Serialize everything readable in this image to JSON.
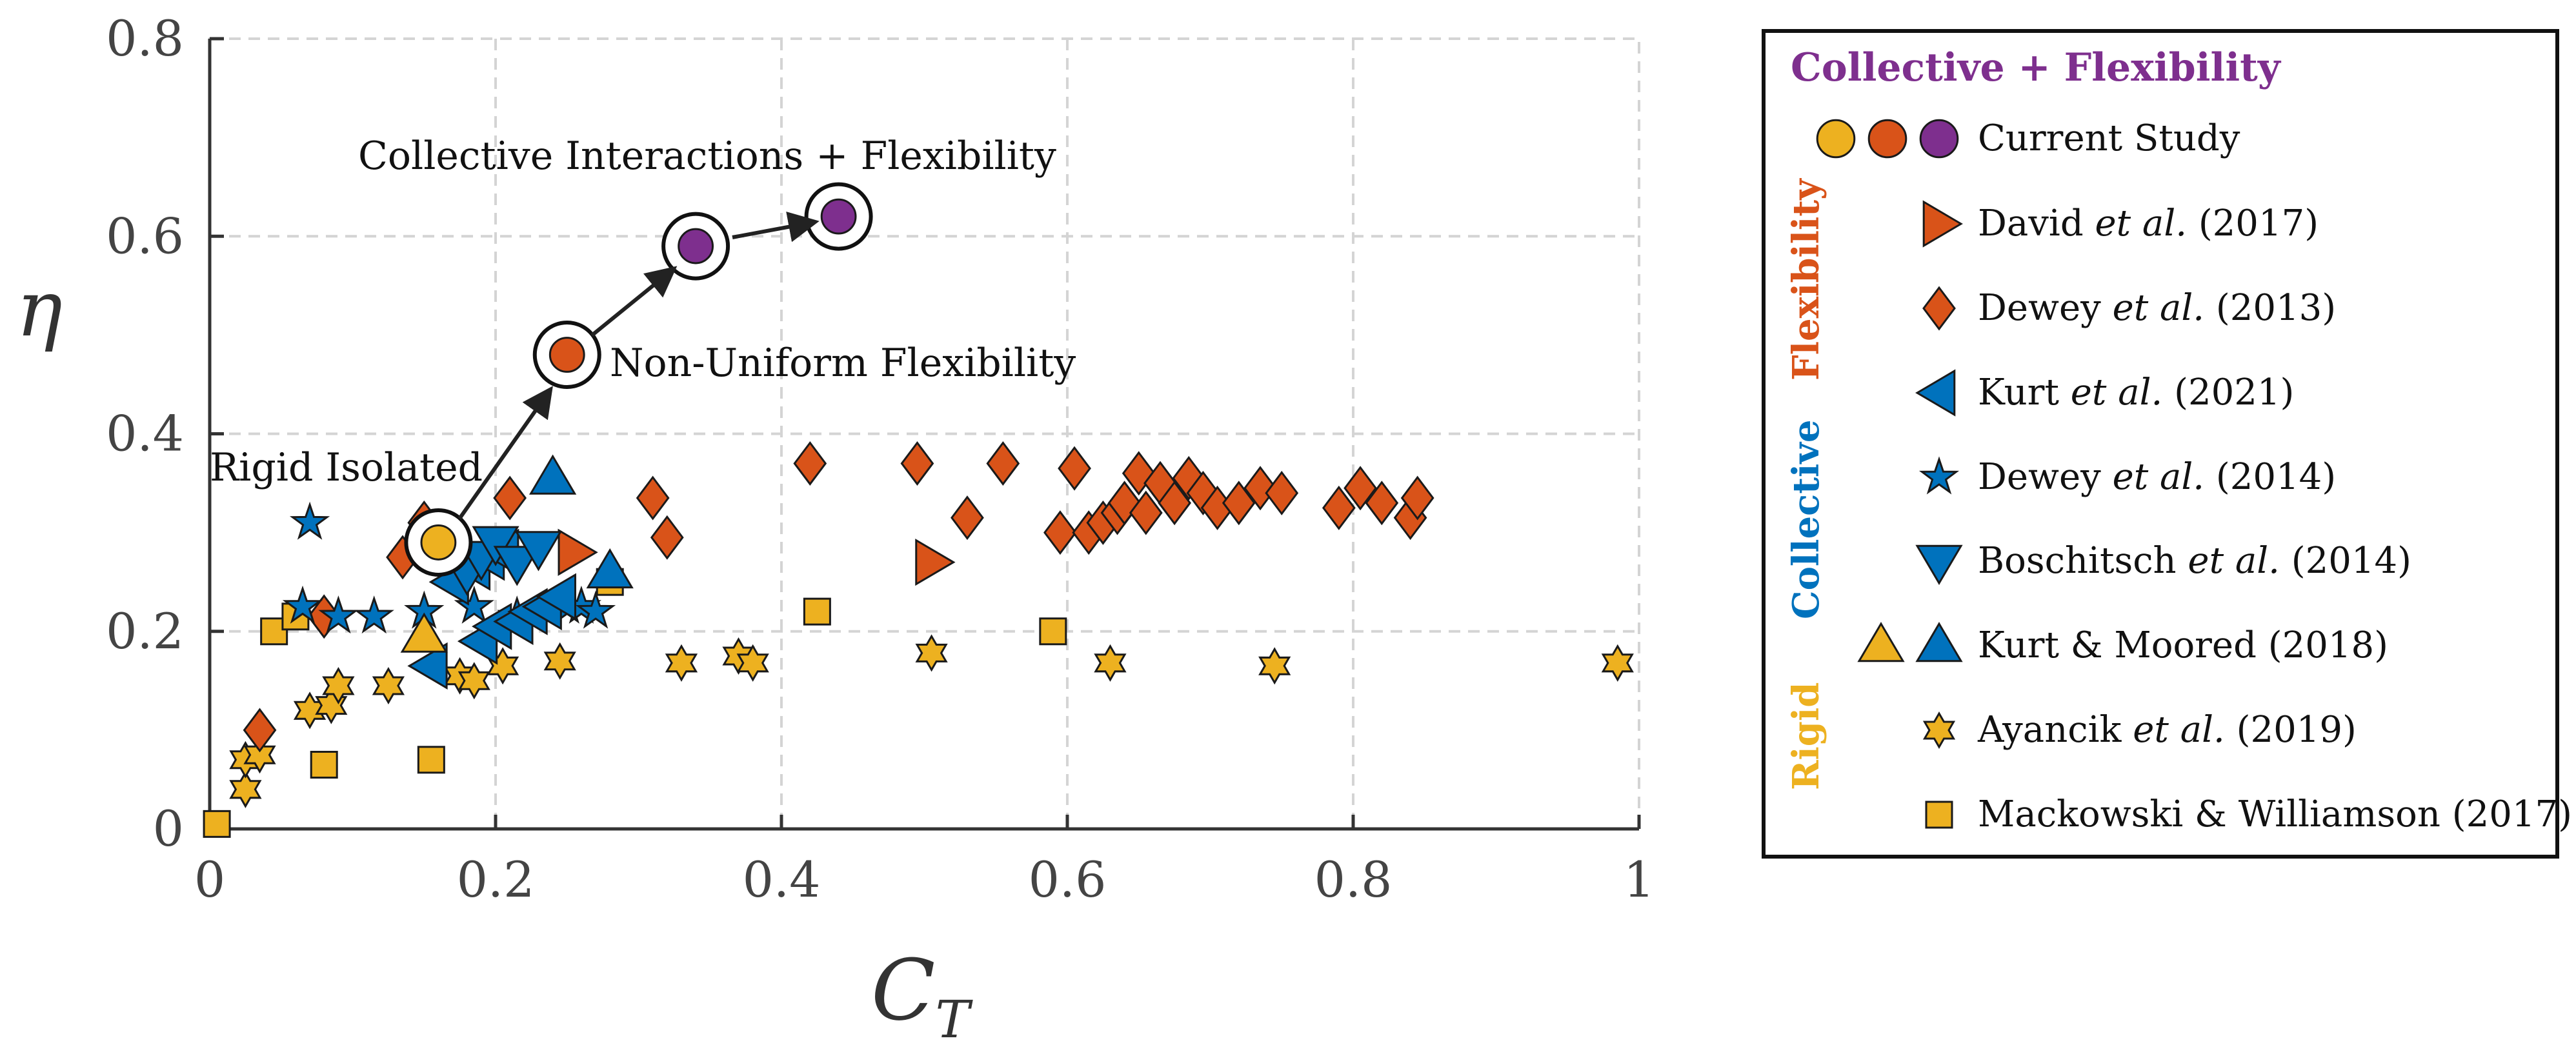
{
  "chart_data": {
    "type": "scatter",
    "xlabel_main": "C",
    "xlabel_sub": "T",
    "ylabel": "η",
    "xlim": [
      0,
      1
    ],
    "ylim": [
      0,
      0.8
    ],
    "xticks": [
      0,
      0.2,
      0.4,
      0.6,
      0.8,
      1
    ],
    "xtick_labels": [
      "0",
      "0.2",
      "0.4",
      "0.6",
      "0.8",
      "1"
    ],
    "yticks": [
      0,
      0.2,
      0.4,
      0.6,
      0.8
    ],
    "ytick_labels": [
      "0",
      "0.2",
      "0.4",
      "0.6",
      "0.8"
    ],
    "grid": true,
    "colors": {
      "rigid": "#EDB120",
      "flex": "#D95319",
      "collective": "#0072BD",
      "purple": "#7E2F8E"
    },
    "annotations": {
      "rigid": "Rigid Isolated",
      "nonuniform": "Non-Uniform Flexibility",
      "collective": "Collective Interactions + Flexibility"
    },
    "series": [
      {
        "name": "Current Study",
        "marker": "circle",
        "points": [
          {
            "x": 0.16,
            "y": 0.29,
            "color": "#EDB120",
            "ring": true
          },
          {
            "x": 0.25,
            "y": 0.48,
            "color": "#D95319",
            "ring": true
          },
          {
            "x": 0.34,
            "y": 0.59,
            "color": "#7E2F8E",
            "ring": true
          },
          {
            "x": 0.44,
            "y": 0.62,
            "color": "#7E2F8E",
            "ring": true
          }
        ]
      },
      {
        "name": "David et al. (2017)",
        "marker": "triangle-right",
        "color": "#D95319",
        "points": [
          {
            "x": 0.255,
            "y": 0.28
          },
          {
            "x": 0.505,
            "y": 0.27
          }
        ]
      },
      {
        "name": "Dewey et al. (2013)",
        "marker": "diamond",
        "color": "#D95319",
        "points": [
          {
            "x": 0.035,
            "y": 0.1
          },
          {
            "x": 0.08,
            "y": 0.215
          },
          {
            "x": 0.135,
            "y": 0.275
          },
          {
            "x": 0.15,
            "y": 0.31
          },
          {
            "x": 0.21,
            "y": 0.335
          },
          {
            "x": 0.31,
            "y": 0.335
          },
          {
            "x": 0.32,
            "y": 0.295
          },
          {
            "x": 0.42,
            "y": 0.37
          },
          {
            "x": 0.495,
            "y": 0.37
          },
          {
            "x": 0.53,
            "y": 0.315
          },
          {
            "x": 0.555,
            "y": 0.37
          },
          {
            "x": 0.595,
            "y": 0.3
          },
          {
            "x": 0.605,
            "y": 0.365
          },
          {
            "x": 0.615,
            "y": 0.3
          },
          {
            "x": 0.625,
            "y": 0.31
          },
          {
            "x": 0.635,
            "y": 0.32
          },
          {
            "x": 0.64,
            "y": 0.33
          },
          {
            "x": 0.65,
            "y": 0.36
          },
          {
            "x": 0.655,
            "y": 0.32
          },
          {
            "x": 0.665,
            "y": 0.35
          },
          {
            "x": 0.675,
            "y": 0.33
          },
          {
            "x": 0.685,
            "y": 0.355
          },
          {
            "x": 0.695,
            "y": 0.34
          },
          {
            "x": 0.705,
            "y": 0.325
          },
          {
            "x": 0.72,
            "y": 0.33
          },
          {
            "x": 0.735,
            "y": 0.345
          },
          {
            "x": 0.75,
            "y": 0.34
          },
          {
            "x": 0.79,
            "y": 0.325
          },
          {
            "x": 0.805,
            "y": 0.345
          },
          {
            "x": 0.82,
            "y": 0.33
          },
          {
            "x": 0.84,
            "y": 0.315
          },
          {
            "x": 0.845,
            "y": 0.335
          }
        ]
      },
      {
        "name": "Kurt et al. (2021)",
        "marker": "triangle-left",
        "color": "#0072BD",
        "points": [
          {
            "x": 0.155,
            "y": 0.165
          },
          {
            "x": 0.17,
            "y": 0.25
          },
          {
            "x": 0.185,
            "y": 0.265
          },
          {
            "x": 0.19,
            "y": 0.19
          },
          {
            "x": 0.195,
            "y": 0.275
          },
          {
            "x": 0.2,
            "y": 0.205
          },
          {
            "x": 0.205,
            "y": 0.28
          },
          {
            "x": 0.215,
            "y": 0.21
          },
          {
            "x": 0.225,
            "y": 0.22
          },
          {
            "x": 0.235,
            "y": 0.225
          },
          {
            "x": 0.245,
            "y": 0.235
          }
        ]
      },
      {
        "name": "Dewey et al. (2014)",
        "marker": "star5",
        "color": "#0072BD",
        "points": [
          {
            "x": 0.07,
            "y": 0.31
          },
          {
            "x": 0.065,
            "y": 0.225
          },
          {
            "x": 0.09,
            "y": 0.215
          },
          {
            "x": 0.115,
            "y": 0.215
          },
          {
            "x": 0.15,
            "y": 0.22
          },
          {
            "x": 0.185,
            "y": 0.225
          },
          {
            "x": 0.215,
            "y": 0.215
          },
          {
            "x": 0.25,
            "y": 0.225
          },
          {
            "x": 0.26,
            "y": 0.225
          },
          {
            "x": 0.27,
            "y": 0.22
          }
        ]
      },
      {
        "name": "Boschitsch et al. (2014)",
        "marker": "triangle-down",
        "color": "#0072BD",
        "points": [
          {
            "x": 0.18,
            "y": 0.26
          },
          {
            "x": 0.19,
            "y": 0.275
          },
          {
            "x": 0.2,
            "y": 0.29
          },
          {
            "x": 0.215,
            "y": 0.27
          },
          {
            "x": 0.23,
            "y": 0.285
          }
        ]
      },
      {
        "name": "Kurt & Moored (2018)",
        "marker": "triangle-up",
        "points": [
          {
            "x": 0.15,
            "y": 0.195,
            "color": "#EDB120"
          },
          {
            "x": 0.24,
            "y": 0.355,
            "color": "#0072BD"
          },
          {
            "x": 0.28,
            "y": 0.26,
            "color": "#0072BD"
          }
        ]
      },
      {
        "name": "Ayancik et al. (2019)",
        "marker": "star6",
        "color": "#EDB120",
        "points": [
          {
            "x": 0.025,
            "y": 0.04
          },
          {
            "x": 0.025,
            "y": 0.07
          },
          {
            "x": 0.035,
            "y": 0.075
          },
          {
            "x": 0.07,
            "y": 0.12
          },
          {
            "x": 0.085,
            "y": 0.125
          },
          {
            "x": 0.09,
            "y": 0.145
          },
          {
            "x": 0.125,
            "y": 0.145
          },
          {
            "x": 0.175,
            "y": 0.155
          },
          {
            "x": 0.185,
            "y": 0.15
          },
          {
            "x": 0.205,
            "y": 0.165
          },
          {
            "x": 0.245,
            "y": 0.17
          },
          {
            "x": 0.33,
            "y": 0.168
          },
          {
            "x": 0.37,
            "y": 0.175
          },
          {
            "x": 0.38,
            "y": 0.168
          },
          {
            "x": 0.505,
            "y": 0.178
          },
          {
            "x": 0.63,
            "y": 0.168
          },
          {
            "x": 0.745,
            "y": 0.165
          },
          {
            "x": 0.985,
            "y": 0.168
          }
        ]
      },
      {
        "name": "Mackowski & Williamson (2017)",
        "marker": "square",
        "color": "#EDB120",
        "points": [
          {
            "x": 0.005,
            "y": 0.005
          },
          {
            "x": 0.045,
            "y": 0.2
          },
          {
            "x": 0.06,
            "y": 0.215
          },
          {
            "x": 0.08,
            "y": 0.065
          },
          {
            "x": 0.155,
            "y": 0.07
          },
          {
            "x": 0.28,
            "y": 0.25
          },
          {
            "x": 0.425,
            "y": 0.22
          },
          {
            "x": 0.59,
            "y": 0.2
          }
        ]
      }
    ]
  },
  "legend": {
    "header": "Collective + Flexibility",
    "side_labels": {
      "flexibility": "Flexibility",
      "collective": "Collective",
      "rigid": "Rigid"
    },
    "entries": [
      {
        "key": "current",
        "plain": "Current Study"
      },
      {
        "key": "david",
        "author": "David ",
        "etal": "et al.",
        "year": " (2017)"
      },
      {
        "key": "dewey13",
        "author": "Dewey ",
        "etal": "et al.",
        "year": " (2013)"
      },
      {
        "key": "kurt21",
        "author": "Kurt ",
        "etal": "et al.",
        "year": " (2021)"
      },
      {
        "key": "dewey14",
        "author": "Dewey ",
        "etal": "et al.",
        "year": " (2014)"
      },
      {
        "key": "boschitsch",
        "author": "Boschitsch ",
        "etal": "et al.",
        "year": " (2014)"
      },
      {
        "key": "kurtmoored",
        "plain": "Kurt & Moored (2018)"
      },
      {
        "key": "ayancik",
        "author": "Ayancik ",
        "etal": "et al.",
        "year": " (2019)"
      },
      {
        "key": "mackowski",
        "plain": "Mackowski & Williamson (2017)"
      }
    ]
  }
}
